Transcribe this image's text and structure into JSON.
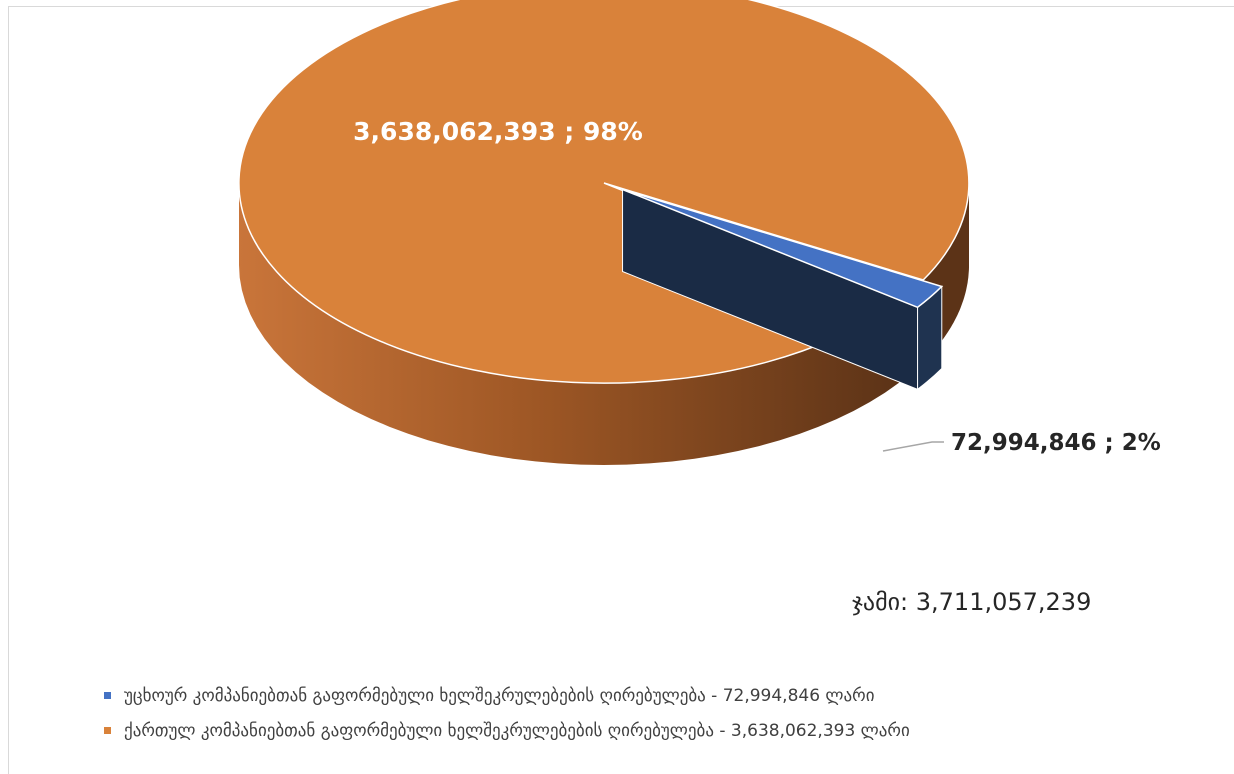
{
  "chart_data": {
    "type": "pie",
    "three_d": true,
    "slices": [
      {
        "name": "უცხოურ კომპანიებთან გაფორმებული ხელშეკრულებების ღირებულება - 72,994,846 ლარი",
        "value": 72994846,
        "percent": 2,
        "data_label": "72,994,846 ; 2%",
        "color": "#4472C4",
        "exploded": true
      },
      {
        "name": "ქართულ კომპანიებთან გაფორმებული ხელშეკრულებების ღირებულება - 3,638,062,393 ლარი",
        "value": 3638062393,
        "percent": 98,
        "data_label": "3,638,062,393 ; 98%",
        "color": "#D9823A",
        "exploded": false
      }
    ],
    "total_label": "ჯამი: 3,711,057,239",
    "legend_position": "bottom-left"
  }
}
